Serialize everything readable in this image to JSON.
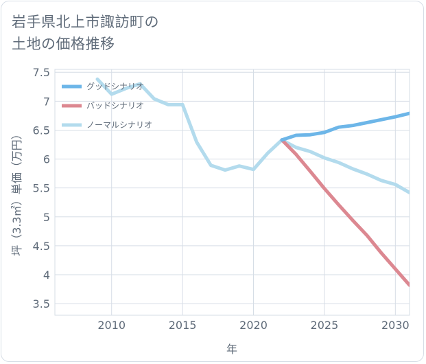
{
  "chart_data": {
    "type": "line",
    "title_lines": [
      "岩手県北上市諏訪町の",
      "土地の価格推移"
    ],
    "xlabel": "年",
    "ylabel": "坪（3.3㎡）単価（万円）",
    "xlim": [
      2006,
      2031
    ],
    "ylim": [
      3.3,
      7.55
    ],
    "xticks": [
      2010,
      2015,
      2020,
      2025,
      2030
    ],
    "yticks": [
      3.5,
      4,
      4.5,
      5,
      5.5,
      6,
      6.5,
      7,
      7.5
    ],
    "ytick_labels": [
      "3.5",
      "4",
      "4.5",
      "5",
      "5.5",
      "6",
      "6.5",
      "7",
      "7.5"
    ],
    "legend_position": "top-left",
    "series": [
      {
        "name": "グッドシナリオ",
        "color": "#6db6e8",
        "x": [
          2022,
          2023,
          2024,
          2025,
          2026,
          2027,
          2028,
          2029,
          2030,
          2031
        ],
        "values": [
          6.33,
          6.41,
          6.42,
          6.46,
          6.55,
          6.58,
          6.63,
          6.68,
          6.73,
          6.79
        ]
      },
      {
        "name": "バッドシナリオ",
        "color": "#dc8891",
        "x": [
          2022,
          2023,
          2024,
          2025,
          2026,
          2027,
          2028,
          2029,
          2030,
          2031
        ],
        "values": [
          6.33,
          6.08,
          5.79,
          5.49,
          5.21,
          4.94,
          4.68,
          4.38,
          4.1,
          3.82
        ]
      },
      {
        "name": "ノーマルシナリオ",
        "color": "#b3dbed",
        "x": [
          2009,
          2010,
          2011,
          2012,
          2013,
          2014,
          2015,
          2016,
          2017,
          2018,
          2019,
          2020,
          2021,
          2022,
          2023,
          2024,
          2025,
          2026,
          2027,
          2028,
          2029,
          2030,
          2031
        ],
        "values": [
          7.38,
          7.12,
          7.22,
          7.3,
          7.04,
          6.94,
          6.94,
          6.29,
          5.89,
          5.81,
          5.88,
          5.82,
          6.1,
          6.33,
          6.2,
          6.13,
          6.02,
          5.94,
          5.83,
          5.74,
          5.63,
          5.56,
          5.42
        ]
      }
    ]
  }
}
